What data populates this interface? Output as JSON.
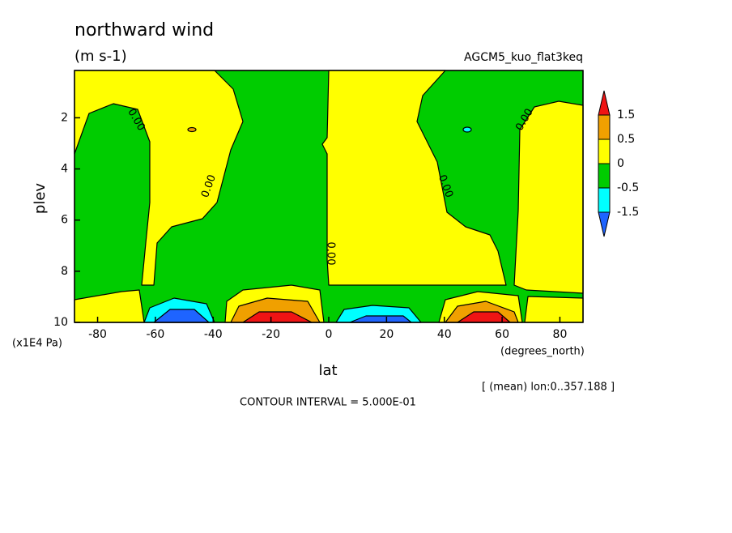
{
  "chart_data": {
    "type": "contour",
    "title": "northward wind",
    "subtitle": "(m s-1)",
    "run_label": "AGCM5_kuo_flat3keq",
    "xlabel": "lat",
    "ylabel": "plev",
    "x_unit": "(degrees_north)",
    "y_unit": "(x1E4 Pa)",
    "mean_note": "[ (mean) lon:0..357.188 ]",
    "contour_interval": "CONTOUR INTERVAL = 5.000E-01",
    "xlim": [
      -88,
      88
    ],
    "ylim": [
      10,
      0.15
    ],
    "xticks": [
      -80,
      -60,
      -40,
      -20,
      0,
      20,
      40,
      60,
      80
    ],
    "yticks": [
      2,
      4,
      6,
      8,
      10
    ],
    "levels": [
      1.5,
      0.5,
      0,
      -0.5,
      -1.5
    ],
    "colors": [
      "#f01414",
      "#f0a000",
      "#ffff00",
      "#00cc00",
      "#00ffff",
      "#1e64ff"
    ],
    "contour_labels": [
      "0.00",
      "0.00",
      "0.00",
      "0.00",
      "0.00"
    ]
  }
}
